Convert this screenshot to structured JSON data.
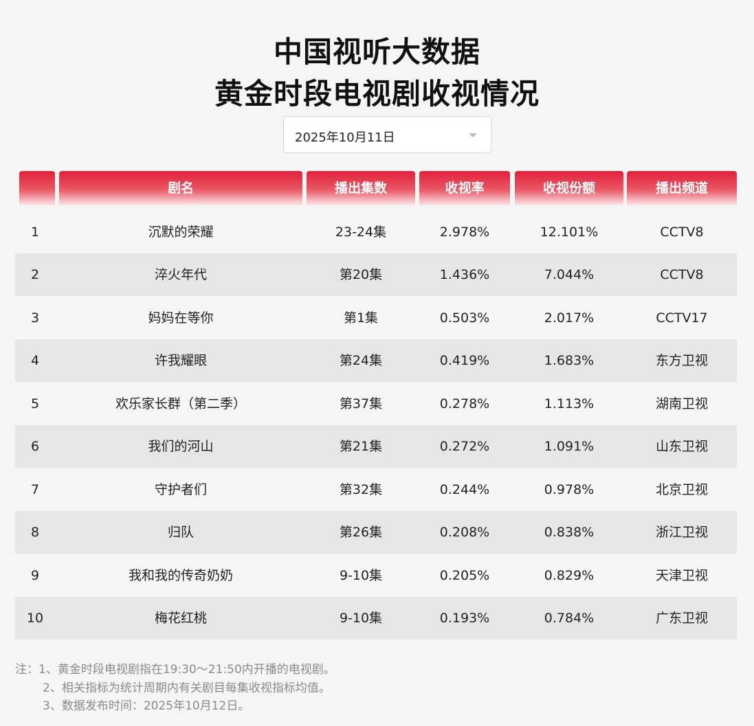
{
  "title_line1": "中国视听大数据",
  "title_line2": "黄金时段电视剧收视情况",
  "date_select": {
    "value": "2025年10月11日"
  },
  "table": {
    "headers": [
      "",
      "剧名",
      "播出集数",
      "收视率",
      "收视份额",
      "播出频道"
    ],
    "rows": [
      {
        "rank": "1",
        "name": "沉默的荣耀",
        "episodes": "23-24集",
        "rating": "2.978%",
        "share": "12.101%",
        "channel": "CCTV8"
      },
      {
        "rank": "2",
        "name": "淬火年代",
        "episodes": "第20集",
        "rating": "1.436%",
        "share": "7.044%",
        "channel": "CCTV8"
      },
      {
        "rank": "3",
        "name": "妈妈在等你",
        "episodes": "第1集",
        "rating": "0.503%",
        "share": "2.017%",
        "channel": "CCTV17"
      },
      {
        "rank": "4",
        "name": "许我耀眼",
        "episodes": "第24集",
        "rating": "0.419%",
        "share": "1.683%",
        "channel": "东方卫视"
      },
      {
        "rank": "5",
        "name": "欢乐家长群（第二季）",
        "episodes": "第37集",
        "rating": "0.278%",
        "share": "1.113%",
        "channel": "湖南卫视"
      },
      {
        "rank": "6",
        "name": "我们的河山",
        "episodes": "第21集",
        "rating": "0.272%",
        "share": "1.091%",
        "channel": "山东卫视"
      },
      {
        "rank": "7",
        "name": "守护者们",
        "episodes": "第32集",
        "rating": "0.244%",
        "share": "0.978%",
        "channel": "北京卫视"
      },
      {
        "rank": "8",
        "name": "归队",
        "episodes": "第26集",
        "rating": "0.208%",
        "share": "0.838%",
        "channel": "浙江卫视"
      },
      {
        "rank": "9",
        "name": "我和我的传奇奶奶",
        "episodes": "9-10集",
        "rating": "0.205%",
        "share": "0.829%",
        "channel": "天津卫视"
      },
      {
        "rank": "10",
        "name": "梅花红桃",
        "episodes": "9-10集",
        "rating": "0.193%",
        "share": "0.784%",
        "channel": "广东卫视"
      }
    ]
  },
  "notes": [
    "注：1、黄金时段电视剧指在19:30～21:50内开播的电视剧。",
    "2、相关指标为统计周期内有关剧目每集收视指标均值。",
    "3、数据发布时间：2025年10月12日。"
  ],
  "colors": {
    "header_red": "#e0213a",
    "alt_row": "#e6e6e6",
    "background": "#f5f5f5"
  }
}
